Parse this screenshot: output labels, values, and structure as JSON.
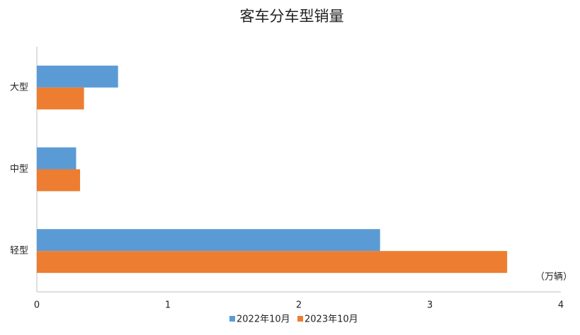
{
  "chart_data": {
    "type": "hbar",
    "title": "客车分车型销量",
    "categories": [
      "大型",
      "中型",
      "轻型"
    ],
    "series": [
      {
        "name": "2022年10月",
        "color": "#5b9bd5",
        "values": [
          0.62,
          0.3,
          2.62
        ]
      },
      {
        "name": "2023年10月",
        "color": "#ed7d31",
        "values": [
          0.36,
          0.33,
          3.59
        ]
      }
    ],
    "xlim": [
      0,
      4
    ],
    "xticks": [
      0,
      1,
      2,
      3,
      4
    ],
    "unit_label": "（万辆）",
    "grid": false,
    "legend": "bottom"
  }
}
